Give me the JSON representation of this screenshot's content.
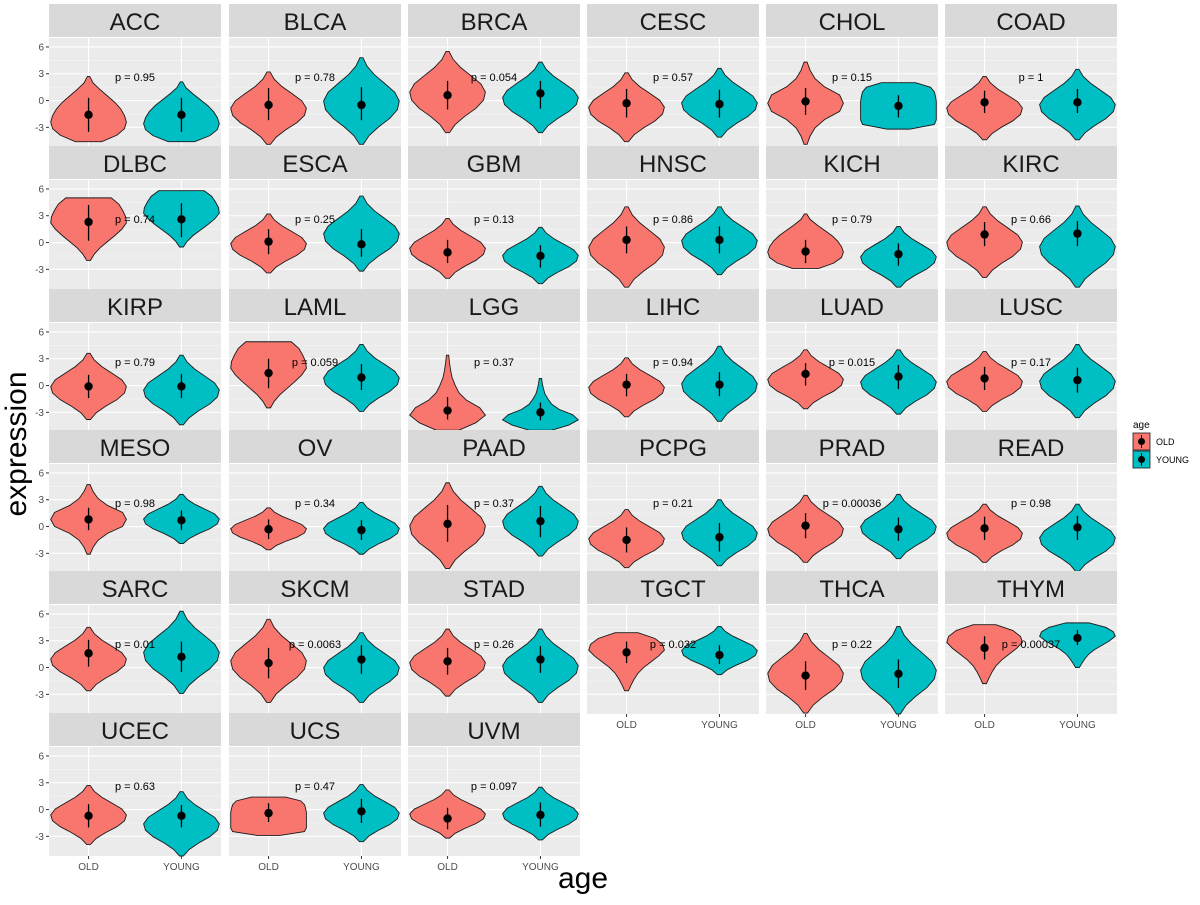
{
  "chart_data": {
    "type": "violin",
    "title": "",
    "xlabel": "age",
    "ylabel": "expression",
    "categories": [
      "OLD",
      "YOUNG"
    ],
    "y_ticks": [
      -3,
      0,
      3,
      6
    ],
    "ylim": [
      -5.2,
      7
    ],
    "legend": {
      "title": "age",
      "position": "right",
      "entries": [
        {
          "label": "OLD",
          "color": "#F8766D"
        },
        {
          "label": "YOUNG",
          "color": "#00BFC4"
        }
      ]
    },
    "panels": [
      {
        "name": "ACC",
        "p_label": "p = 0.95",
        "old": {
          "min": -4.6,
          "max": 2.7,
          "median": -1.6,
          "q1": -3.5,
          "q3": 0.3,
          "shape": "bulbBottom"
        },
        "young": {
          "min": -4.6,
          "max": 2.1,
          "median": -1.6,
          "q1": -3.5,
          "q3": 0.3,
          "shape": "bulbBottom"
        }
      },
      {
        "name": "BLCA",
        "p_label": "p = 0.78",
        "old": {
          "min": -4.9,
          "max": 3.2,
          "median": -0.5,
          "q1": -2.2,
          "q3": 1.4,
          "shape": "normal"
        },
        "young": {
          "min": -4.9,
          "max": 4.8,
          "median": -0.5,
          "q1": -2.2,
          "q3": 1.5,
          "shape": "normal"
        }
      },
      {
        "name": "BRCA",
        "p_label": "p = 0.054",
        "old": {
          "min": -3.6,
          "max": 5.5,
          "median": 0.6,
          "q1": -1.0,
          "q3": 2.2,
          "shape": "normal"
        },
        "young": {
          "min": -3.6,
          "max": 4.3,
          "median": 0.8,
          "q1": -0.9,
          "q3": 2.2,
          "shape": "normal"
        }
      },
      {
        "name": "CESC",
        "p_label": "p = 0.57",
        "old": {
          "min": -4.6,
          "max": 3.1,
          "median": -0.3,
          "q1": -1.9,
          "q3": 1.3,
          "shape": "normal"
        },
        "young": {
          "min": -4.1,
          "max": 3.6,
          "median": -0.4,
          "q1": -1.9,
          "q3": 1.2,
          "shape": "normal"
        }
      },
      {
        "name": "CHOL",
        "p_label": "p = 0.15",
        "old": {
          "min": -4.9,
          "max": 4.3,
          "median": -0.1,
          "q1": -1.6,
          "q3": 1.4,
          "shape": "diamond"
        },
        "young": {
          "min": -3.2,
          "max": 2.0,
          "median": -0.6,
          "q1": -1.9,
          "q3": 0.6,
          "shape": "flat"
        }
      },
      {
        "name": "COAD",
        "p_label": "p = 1",
        "old": {
          "min": -4.4,
          "max": 2.7,
          "median": -0.2,
          "q1": -1.4,
          "q3": 1.1,
          "shape": "normal"
        },
        "young": {
          "min": -4.4,
          "max": 3.5,
          "median": -0.2,
          "q1": -1.4,
          "q3": 1.3,
          "shape": "normal"
        }
      },
      {
        "name": "DLBC",
        "p_label": "p = 0.74",
        "old": {
          "min": -2.0,
          "max": 5.0,
          "median": 2.3,
          "q1": 0.2,
          "q3": 4.2,
          "shape": "bulbTop"
        },
        "young": {
          "min": -0.5,
          "max": 5.8,
          "median": 2.6,
          "q1": 0.6,
          "q3": 4.4,
          "shape": "bulbTop"
        }
      },
      {
        "name": "ESCA",
        "p_label": "p = 0.25",
        "old": {
          "min": -3.4,
          "max": 3.2,
          "median": 0.1,
          "q1": -1.3,
          "q3": 1.5,
          "shape": "normal"
        },
        "young": {
          "min": -3.2,
          "max": 5.2,
          "median": -0.2,
          "q1": -1.6,
          "q3": 1.5,
          "shape": "normal"
        }
      },
      {
        "name": "GBM",
        "p_label": "p = 0.13",
        "old": {
          "min": -4.0,
          "max": 2.7,
          "median": -1.1,
          "q1": -2.3,
          "q3": 0.3,
          "shape": "normal"
        },
        "young": {
          "min": -4.6,
          "max": 1.7,
          "median": -1.5,
          "q1": -2.8,
          "q3": -0.3,
          "shape": "normal"
        }
      },
      {
        "name": "HNSC",
        "p_label": "p = 0.86",
        "old": {
          "min": -5.0,
          "max": 4.0,
          "median": 0.3,
          "q1": -1.2,
          "q3": 1.8,
          "shape": "normal"
        },
        "young": {
          "min": -3.6,
          "max": 4.0,
          "median": 0.3,
          "q1": -1.2,
          "q3": 1.8,
          "shape": "normal"
        }
      },
      {
        "name": "KICH",
        "p_label": "p = 0.79",
        "old": {
          "min": -2.9,
          "max": 3.2,
          "median": -1.0,
          "q1": -2.3,
          "q3": 0.3,
          "shape": "bulbBottom"
        },
        "young": {
          "min": -5.0,
          "max": 1.8,
          "median": -1.3,
          "q1": -2.6,
          "q3": -0.1,
          "shape": "normal"
        }
      },
      {
        "name": "KIRC",
        "p_label": "p = 0.66",
        "old": {
          "min": -3.9,
          "max": 4.0,
          "median": 0.9,
          "q1": -0.4,
          "q3": 2.3,
          "shape": "normal"
        },
        "young": {
          "min": -5.0,
          "max": 4.1,
          "median": 1.0,
          "q1": -0.4,
          "q3": 2.4,
          "shape": "normal"
        }
      },
      {
        "name": "KIRP",
        "p_label": "p = 0.79",
        "old": {
          "min": -3.8,
          "max": 3.6,
          "median": -0.1,
          "q1": -1.4,
          "q3": 1.2,
          "shape": "normal"
        },
        "young": {
          "min": -4.4,
          "max": 3.4,
          "median": -0.1,
          "q1": -1.4,
          "q3": 1.3,
          "shape": "normal"
        }
      },
      {
        "name": "LAML",
        "p_label": "p = 0.059",
        "old": {
          "min": -2.5,
          "max": 4.9,
          "median": 1.4,
          "q1": -0.3,
          "q3": 3.0,
          "shape": "bulbTop"
        },
        "young": {
          "min": -2.9,
          "max": 4.6,
          "median": 0.9,
          "q1": -0.5,
          "q3": 2.4,
          "shape": "normal"
        }
      },
      {
        "name": "LGG",
        "p_label": "p = 0.37",
        "old": {
          "min": -5.0,
          "max": 3.4,
          "median": -2.8,
          "q1": -3.8,
          "q3": -1.3,
          "shape": "bottomHeavy"
        },
        "young": {
          "min": -5.0,
          "max": 0.8,
          "median": -3.0,
          "q1": -3.9,
          "q3": -1.9,
          "shape": "bottomHeavy"
        }
      },
      {
        "name": "LIHC",
        "p_label": "p = 0.94",
        "old": {
          "min": -3.5,
          "max": 3.1,
          "median": 0.1,
          "q1": -1.2,
          "q3": 1.3,
          "shape": "normal"
        },
        "young": {
          "min": -4.0,
          "max": 4.4,
          "median": 0.1,
          "q1": -1.2,
          "q3": 1.5,
          "shape": "normal"
        }
      },
      {
        "name": "LUAD",
        "p_label": "p = 0.015",
        "old": {
          "min": -2.6,
          "max": 4.0,
          "median": 1.3,
          "q1": 0.0,
          "q3": 2.5,
          "shape": "normal"
        },
        "young": {
          "min": -3.2,
          "max": 4.0,
          "median": 1.0,
          "q1": -0.4,
          "q3": 2.3,
          "shape": "normal"
        }
      },
      {
        "name": "LUSC",
        "p_label": "p = 0.17",
        "old": {
          "min": -2.9,
          "max": 3.8,
          "median": 0.8,
          "q1": -0.5,
          "q3": 2.1,
          "shape": "normal"
        },
        "young": {
          "min": -3.6,
          "max": 4.6,
          "median": 0.6,
          "q1": -0.8,
          "q3": 2.0,
          "shape": "normal"
        }
      },
      {
        "name": "MESO",
        "p_label": "p = 0.98",
        "old": {
          "min": -3.1,
          "max": 4.7,
          "median": 0.8,
          "q1": -0.4,
          "q3": 2.1,
          "shape": "diamond"
        },
        "young": {
          "min": -1.9,
          "max": 3.6,
          "median": 0.7,
          "q1": -0.4,
          "q3": 1.8,
          "shape": "normal"
        }
      },
      {
        "name": "OV",
        "p_label": "p = 0.34",
        "old": {
          "min": -2.6,
          "max": 2.1,
          "median": -0.3,
          "q1": -1.4,
          "q3": 0.8,
          "shape": "normal"
        },
        "young": {
          "min": -3.1,
          "max": 2.7,
          "median": -0.4,
          "q1": -1.5,
          "q3": 0.7,
          "shape": "normal"
        }
      },
      {
        "name": "PAAD",
        "p_label": "p = 0.37",
        "old": {
          "min": -4.7,
          "max": 4.9,
          "median": 0.3,
          "q1": -1.7,
          "q3": 2.4,
          "shape": "normal"
        },
        "young": {
          "min": -3.3,
          "max": 4.5,
          "median": 0.6,
          "q1": -1.2,
          "q3": 2.3,
          "shape": "normal"
        }
      },
      {
        "name": "PCPG",
        "p_label": "p = 0.21",
        "old": {
          "min": -4.6,
          "max": 1.9,
          "median": -1.5,
          "q1": -2.9,
          "q3": -0.1,
          "shape": "normal"
        },
        "young": {
          "min": -4.4,
          "max": 3.0,
          "median": -1.2,
          "q1": -2.8,
          "q3": 0.4,
          "shape": "normal"
        }
      },
      {
        "name": "PRAD",
        "p_label": "p = 0.00036",
        "old": {
          "min": -4.0,
          "max": 3.5,
          "median": 0.1,
          "q1": -1.3,
          "q3": 1.5,
          "shape": "normal"
        },
        "young": {
          "min": -3.6,
          "max": 3.6,
          "median": -0.3,
          "q1": -1.6,
          "q3": 1.0,
          "shape": "normal"
        }
      },
      {
        "name": "READ",
        "p_label": "p = 0.98",
        "old": {
          "min": -4.0,
          "max": 2.5,
          "median": -0.2,
          "q1": -1.5,
          "q3": 1.1,
          "shape": "normal"
        },
        "young": {
          "min": -5.0,
          "max": 2.5,
          "median": -0.1,
          "q1": -1.5,
          "q3": 1.2,
          "shape": "normal"
        }
      },
      {
        "name": "SARC",
        "p_label": "p = 0.01",
        "old": {
          "min": -2.6,
          "max": 4.5,
          "median": 1.6,
          "q1": 0.1,
          "q3": 3.1,
          "shape": "normal"
        },
        "young": {
          "min": -2.9,
          "max": 6.3,
          "median": 1.2,
          "q1": -0.5,
          "q3": 2.9,
          "shape": "normal"
        }
      },
      {
        "name": "SKCM",
        "p_label": "p = 0.0063",
        "old": {
          "min": -3.9,
          "max": 5.4,
          "median": 0.5,
          "q1": -1.2,
          "q3": 2.2,
          "shape": "normal"
        },
        "young": {
          "min": -3.9,
          "max": 3.9,
          "median": 0.9,
          "q1": -0.7,
          "q3": 2.5,
          "shape": "normal"
        }
      },
      {
        "name": "STAD",
        "p_label": "p = 0.26",
        "old": {
          "min": -3.2,
          "max": 4.3,
          "median": 0.7,
          "q1": -0.8,
          "q3": 2.2,
          "shape": "normal"
        },
        "young": {
          "min": -3.9,
          "max": 4.3,
          "median": 0.9,
          "q1": -0.6,
          "q3": 2.4,
          "shape": "normal"
        }
      },
      {
        "name": "TGCT",
        "p_label": "p = 0.032",
        "old": {
          "min": -2.6,
          "max": 3.9,
          "median": 1.7,
          "q1": 0.5,
          "q3": 2.9,
          "shape": "topHeavy"
        },
        "young": {
          "min": -0.8,
          "max": 4.6,
          "median": 1.4,
          "q1": 0.4,
          "q3": 2.5,
          "shape": "normal"
        }
      },
      {
        "name": "THCA",
        "p_label": "p = 0.22",
        "old": {
          "min": -5.1,
          "max": 3.8,
          "median": -0.9,
          "q1": -2.5,
          "q3": 0.7,
          "shape": "normal"
        },
        "young": {
          "min": -5.2,
          "max": 4.6,
          "median": -0.7,
          "q1": -2.3,
          "q3": 0.9,
          "shape": "normal"
        }
      },
      {
        "name": "THYM",
        "p_label": "p = 0.00037",
        "old": {
          "min": -1.8,
          "max": 4.8,
          "median": 2.2,
          "q1": 0.9,
          "q3": 3.5,
          "shape": "topHeavy"
        },
        "young": {
          "min": 0.0,
          "max": 5.0,
          "median": 3.3,
          "q1": 2.5,
          "q3": 4.2,
          "shape": "topHeavy"
        }
      },
      {
        "name": "UCEC",
        "p_label": "p = 0.63",
        "old": {
          "min": -3.9,
          "max": 2.7,
          "median": -0.7,
          "q1": -2.0,
          "q3": 0.6,
          "shape": "normal"
        },
        "young": {
          "min": -5.2,
          "max": 2.0,
          "median": -0.7,
          "q1": -2.0,
          "q3": 0.5,
          "shape": "normal"
        }
      },
      {
        "name": "UCS",
        "p_label": "p = 0.47",
        "old": {
          "min": -2.9,
          "max": 1.4,
          "median": -0.4,
          "q1": -1.4,
          "q3": 0.7,
          "shape": "flat"
        },
        "young": {
          "min": -3.6,
          "max": 2.8,
          "median": -0.2,
          "q1": -1.5,
          "q3": 1.2,
          "shape": "normal"
        }
      },
      {
        "name": "UVM",
        "p_label": "p = 0.097",
        "old": {
          "min": -3.2,
          "max": 2.2,
          "median": -1.0,
          "q1": -2.2,
          "q3": 0.2,
          "shape": "normal"
        },
        "young": {
          "min": -3.4,
          "max": 2.5,
          "median": -0.6,
          "q1": -1.9,
          "q3": 0.8,
          "shape": "normal"
        }
      }
    ]
  }
}
